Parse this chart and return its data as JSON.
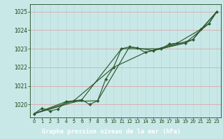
{
  "title": "Graphe pression niveau de la mer (hPa)",
  "bg_color": "#c8e8e8",
  "plot_bg_color": "#c8e8e8",
  "label_bg_color": "#2d6b2d",
  "line_color": "#2d5a2d",
  "grid_color_h": "#dba8a8",
  "grid_color_v": "#c0d8d8",
  "text_color": "#1a4a1a",
  "label_text_color": "#ffffff",
  "ylim": [
    1019.3,
    1025.4
  ],
  "xlim": [
    -0.5,
    23.5
  ],
  "yticks": [
    1020,
    1021,
    1022,
    1023,
    1024,
    1025
  ],
  "xticks": [
    0,
    1,
    2,
    3,
    4,
    5,
    6,
    7,
    8,
    9,
    10,
    11,
    12,
    13,
    14,
    15,
    16,
    17,
    18,
    19,
    20,
    21,
    22,
    23
  ],
  "series1": [
    [
      0,
      1019.5
    ],
    [
      1,
      1019.8
    ],
    [
      2,
      1019.65
    ],
    [
      3,
      1019.75
    ],
    [
      4,
      1020.15
    ],
    [
      5,
      1020.2
    ],
    [
      6,
      1020.25
    ],
    [
      7,
      1020.0
    ],
    [
      8,
      1020.2
    ],
    [
      9,
      1021.35
    ],
    [
      10,
      1022.0
    ],
    [
      11,
      1023.0
    ],
    [
      12,
      1023.1
    ],
    [
      13,
      1023.05
    ],
    [
      14,
      1022.8
    ],
    [
      15,
      1022.9
    ],
    [
      16,
      1023.0
    ],
    [
      17,
      1023.25
    ],
    [
      18,
      1023.3
    ],
    [
      19,
      1023.3
    ],
    [
      20,
      1023.5
    ],
    [
      21,
      1024.05
    ],
    [
      22,
      1024.35
    ],
    [
      23,
      1025.0
    ]
  ],
  "series2": [
    [
      0,
      1019.5
    ],
    [
      5,
      1020.2
    ],
    [
      10,
      1022.0
    ],
    [
      14,
      1022.8
    ],
    [
      18,
      1023.3
    ],
    [
      21,
      1024.05
    ],
    [
      23,
      1025.0
    ]
  ],
  "series3": [
    [
      0,
      1019.5
    ],
    [
      4,
      1020.15
    ],
    [
      8,
      1020.2
    ],
    [
      12,
      1023.1
    ],
    [
      15,
      1022.9
    ],
    [
      19,
      1023.3
    ],
    [
      22,
      1024.35
    ],
    [
      23,
      1025.0
    ]
  ],
  "series4": [
    [
      0,
      1019.5
    ],
    [
      6,
      1020.25
    ],
    [
      11,
      1023.0
    ],
    [
      16,
      1023.0
    ],
    [
      20,
      1023.5
    ],
    [
      23,
      1025.0
    ]
  ]
}
